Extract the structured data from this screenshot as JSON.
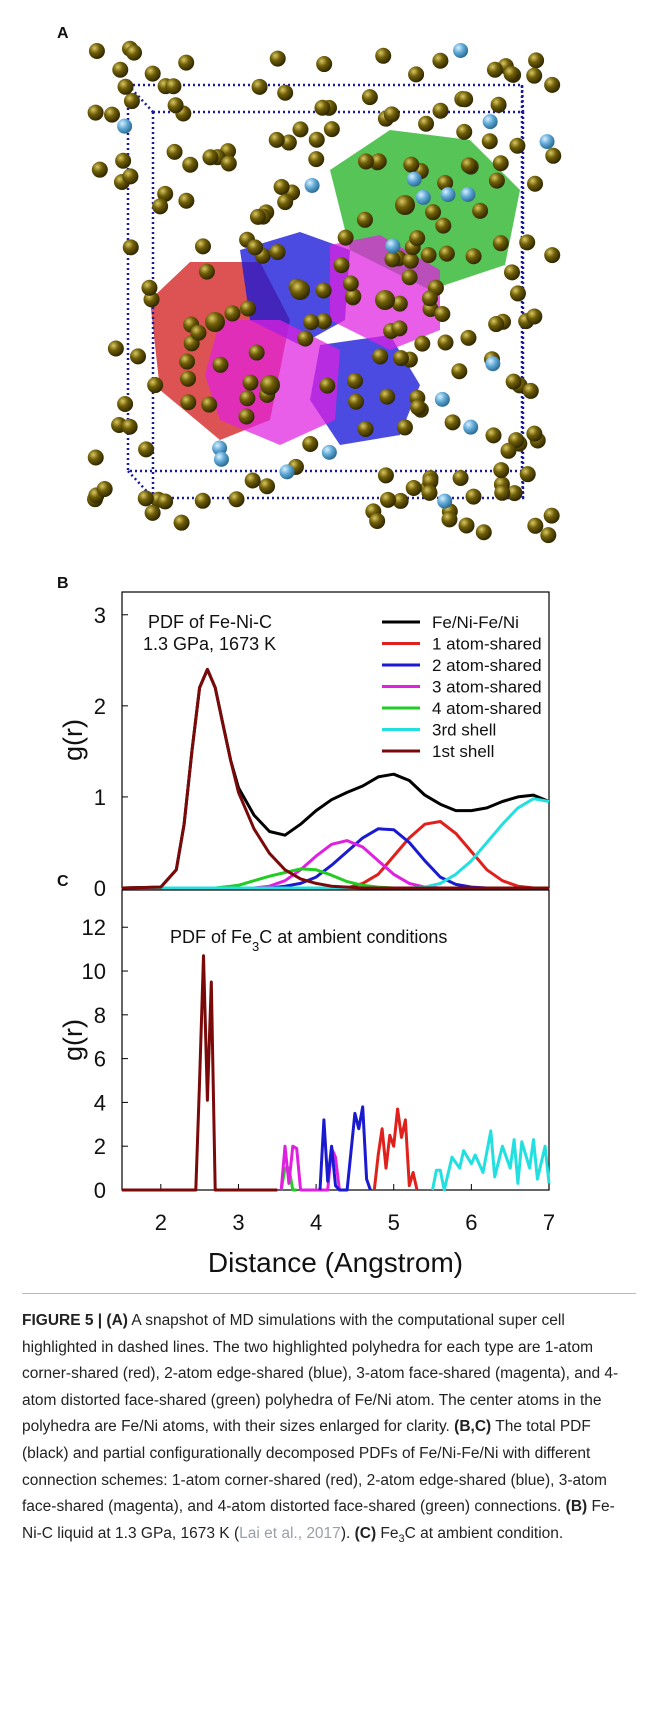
{
  "image_panel": {
    "label": "A"
  },
  "chart_data": [
    {
      "type": "line",
      "label": "B",
      "title": [
        {
          "text": "PDF of Fe-Ni-C"
        }
      ],
      "subtitle": "1.3 GPa, 1673 K",
      "y_label": "g(r)",
      "legend": "upper right",
      "xlim": [
        1.5,
        7
      ],
      "ylim": [
        0,
        3.25
      ],
      "yticks": [
        0,
        1,
        2,
        3
      ],
      "x": [
        1.5,
        2.0,
        2.2,
        2.3,
        2.4,
        2.5,
        2.6,
        2.7,
        2.8,
        2.9,
        3.0,
        3.2,
        3.4,
        3.6,
        3.8,
        4.0,
        4.2,
        4.4,
        4.6,
        4.8,
        5.0,
        5.2,
        5.4,
        5.6,
        5.8,
        6.0,
        6.2,
        6.4,
        6.6,
        6.8,
        7.0
      ],
      "series": [
        {
          "name": "Fe/Ni-Fe/Ni",
          "color": "#000000",
          "values": [
            0,
            0.01,
            0.2,
            0.7,
            1.5,
            2.2,
            2.4,
            2.2,
            1.8,
            1.4,
            1.1,
            0.8,
            0.62,
            0.58,
            0.7,
            0.85,
            0.97,
            1.05,
            1.12,
            1.22,
            1.25,
            1.18,
            1.02,
            0.92,
            0.85,
            0.85,
            0.88,
            0.95,
            1.0,
            1.02,
            0.95
          ]
        },
        {
          "name": "1 atom-shared",
          "color": "#e0201b",
          "values": [
            0,
            0,
            0,
            0,
            0,
            0,
            0,
            0,
            0,
            0,
            0,
            0,
            0,
            0,
            0,
            0,
            0,
            0,
            0.05,
            0.15,
            0.35,
            0.55,
            0.7,
            0.73,
            0.6,
            0.4,
            0.2,
            0.08,
            0.02,
            0,
            0
          ]
        },
        {
          "name": "2 atom-shared",
          "color": "#1a1ad0",
          "values": [
            0,
            0,
            0,
            0,
            0,
            0,
            0,
            0,
            0,
            0,
            0,
            0,
            0,
            0.02,
            0.05,
            0.12,
            0.25,
            0.4,
            0.55,
            0.65,
            0.64,
            0.5,
            0.3,
            0.12,
            0.04,
            0.01,
            0,
            0,
            0,
            0,
            0
          ]
        },
        {
          "name": "3 atom-shared",
          "color": "#e020e0",
          "values": [
            0,
            0,
            0,
            0,
            0,
            0,
            0,
            0,
            0,
            0,
            0,
            0,
            0.02,
            0.08,
            0.2,
            0.35,
            0.48,
            0.52,
            0.45,
            0.3,
            0.15,
            0.05,
            0.01,
            0,
            0,
            0,
            0,
            0,
            0,
            0,
            0
          ]
        },
        {
          "name": "4 atom-shared",
          "color": "#22cc22",
          "values": [
            0,
            0,
            0,
            0,
            0,
            0,
            0,
            0,
            0.01,
            0.02,
            0.03,
            0.08,
            0.13,
            0.17,
            0.21,
            0.2,
            0.14,
            0.07,
            0.03,
            0.01,
            0,
            0,
            0,
            0,
            0,
            0,
            0,
            0,
            0,
            0,
            0
          ]
        },
        {
          "name": "3rd shell",
          "color": "#22e0e0",
          "values": [
            0,
            0,
            0,
            0,
            0,
            0,
            0,
            0,
            0,
            0,
            0,
            0,
            0,
            0,
            0,
            0,
            0,
            0,
            0,
            0,
            0,
            0,
            0.01,
            0.05,
            0.15,
            0.3,
            0.5,
            0.7,
            0.88,
            0.98,
            0.95
          ]
        },
        {
          "name": "1st shell",
          "color": "#7a0a0a",
          "values": [
            0,
            0.01,
            0.2,
            0.7,
            1.5,
            2.2,
            2.4,
            2.2,
            1.8,
            1.4,
            1.05,
            0.65,
            0.38,
            0.2,
            0.1,
            0.05,
            0.02,
            0.01,
            0,
            0,
            0,
            0,
            0,
            0,
            0,
            0,
            0,
            0,
            0,
            0,
            0
          ]
        }
      ]
    },
    {
      "type": "line",
      "label": "C",
      "title": [
        {
          "text": "PDF of Fe"
        },
        {
          "text": "3",
          "style": "sub"
        },
        {
          "text": "C at ambient conditions"
        }
      ],
      "y_label": "g(r)",
      "x_label": "Distance (Angstrom)",
      "xlim": [
        1.5,
        7
      ],
      "xticks": [
        2,
        3,
        4,
        5,
        6,
        7
      ],
      "ylim": [
        0,
        13.7
      ],
      "yticks": [
        0,
        2,
        4,
        6,
        8,
        10,
        12
      ],
      "series": [
        {
          "color": "#22cc22",
          "x": [
            3.55,
            3.6,
            3.65,
            3.7,
            3.75
          ],
          "values": [
            0,
            1.0,
            1.0,
            0,
            0
          ]
        },
        {
          "color": "#e020e0",
          "x": [
            3.55,
            3.6,
            3.65,
            3.7,
            3.75,
            3.8,
            4.15,
            4.2,
            4.25,
            4.3
          ],
          "values": [
            0,
            2.0,
            0.3,
            2.0,
            1.9,
            0,
            0,
            1.9,
            1.5,
            0
          ]
        },
        {
          "color": "#1a1ad0",
          "x": [
            4.05,
            4.1,
            4.15,
            4.2,
            4.25,
            4.3,
            4.4,
            4.5,
            4.55,
            4.6,
            4.65,
            4.7
          ],
          "values": [
            0,
            3.2,
            0.4,
            2.0,
            0.2,
            0,
            0,
            3.5,
            2.8,
            3.8,
            0.5,
            0
          ]
        },
        {
          "color": "#e0201b",
          "x": [
            4.75,
            4.8,
            4.85,
            4.9,
            4.95,
            5.0,
            5.05,
            5.1,
            5.15,
            5.2,
            5.25,
            5.3
          ],
          "values": [
            0,
            1.6,
            2.8,
            1.0,
            2.5,
            2.0,
            3.7,
            2.4,
            3.2,
            0.2,
            0.8,
            0
          ]
        },
        {
          "color": "#22e0e0",
          "x": [
            5.5,
            5.55,
            5.6,
            5.65,
            5.75,
            5.85,
            5.9,
            6.0,
            6.05,
            6.15,
            6.25,
            6.3,
            6.4,
            6.5,
            6.55,
            6.6,
            6.65,
            6.75,
            6.8,
            6.85,
            6.95,
            7.0
          ],
          "values": [
            0,
            0.9,
            0.9,
            0,
            1.5,
            1.0,
            1.8,
            1.2,
            1.6,
            0.8,
            2.7,
            0.6,
            2.0,
            1.0,
            2.3,
            0.3,
            2.2,
            1.0,
            2.3,
            0.5,
            2.0,
            0.3
          ]
        },
        {
          "color": "#7a0a0a",
          "x": [
            1.5,
            2.45,
            2.5,
            2.55,
            2.6,
            2.65,
            2.7,
            2.75,
            3.5
          ],
          "values": [
            0,
            0,
            5,
            10.7,
            4.1,
            9.5,
            0,
            0,
            0
          ]
        }
      ]
    }
  ],
  "caption": [
    {
      "text": "FIGURE 5 | (A)",
      "style": "b"
    },
    {
      "text": " A snapshot of MD simulations with the computational super cell highlighted in dashed lines. The two highlighted polyhedra for each type are 1-atom corner-shared (red), 2-atom edge-shared (blue), 3-atom face-shared (magenta), and 4-atom distorted face-shared (green) polyhedra of Fe/Ni atom. The center atoms in the polyhedra are Fe/Ni atoms, with their sizes enlarged for clarity. "
    },
    {
      "text": "(B,C)",
      "style": "b"
    },
    {
      "text": " The total PDF (black) and partial configurationally decomposed PDFs of Fe/Ni-Fe/Ni with different connection schemes: 1-atom corner-shared (red), 2-atom edge-shared (blue), 3-atom face-shared (magenta), and 4-atom distorted face-shared (green) connections. "
    },
    {
      "text": "(B)",
      "style": "b"
    },
    {
      "text": " Fe-Ni-C liquid at 1.3 GPa, 1673 K ("
    },
    {
      "text": "Lai et al., 2017",
      "style": "link"
    },
    {
      "text": "). "
    },
    {
      "text": "(C)",
      "style": "b"
    },
    {
      "text": " Fe"
    },
    {
      "text": "3",
      "style": "sub"
    },
    {
      "text": "C at ambient condition."
    }
  ]
}
